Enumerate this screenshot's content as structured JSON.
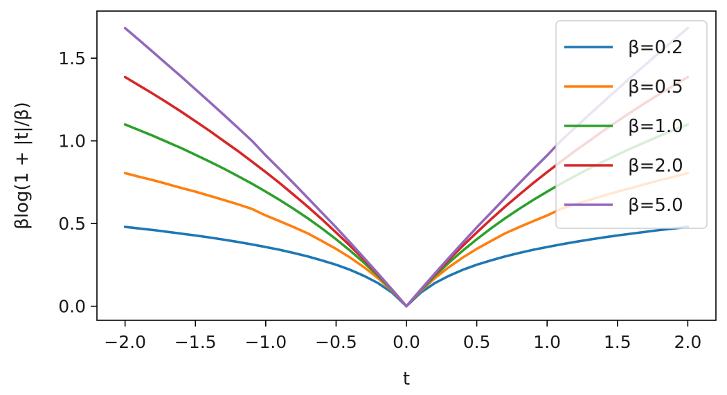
{
  "chart_data": {
    "type": "line",
    "title": "",
    "xlabel": "t",
    "ylabel": "βlog(1 + |t|/β)",
    "xlim": [
      -2.2,
      2.2
    ],
    "ylim": [
      -0.085,
      1.785
    ],
    "xticks": [
      -2.0,
      -1.5,
      -1.0,
      -0.5,
      0.0,
      0.5,
      1.0,
      1.5,
      2.0
    ],
    "xtick_labels": [
      "−2.0",
      "−1.5",
      "−1.0",
      "−0.5",
      "0.0",
      "0.5",
      "1.0",
      "1.5",
      "2.0"
    ],
    "yticks": [
      0.0,
      0.5,
      1.0,
      1.5
    ],
    "ytick_labels": [
      "0.0",
      "0.5",
      "1.0",
      "1.5"
    ],
    "grid": false,
    "legend_position": "top-right",
    "x": [
      -2.0,
      -1.9,
      -1.8,
      -1.7,
      -1.6,
      -1.5,
      -1.4,
      -1.3,
      -1.2,
      -1.1,
      -1.0,
      -0.9,
      -0.8,
      -0.7,
      -0.6,
      -0.5,
      -0.4,
      -0.3,
      -0.2,
      -0.1,
      0.0,
      0.1,
      0.2,
      0.3,
      0.4,
      0.5,
      0.6,
      0.7,
      0.8,
      0.9,
      1.0,
      1.1,
      1.2,
      1.3,
      1.4,
      1.5,
      1.6,
      1.7,
      1.8,
      1.9,
      2.0
    ],
    "series": [
      {
        "name": "β=0.2",
        "color": "#1f77b4",
        "values": [
          0.48,
          0.47,
          0.461,
          0.45,
          0.439,
          0.428,
          0.416,
          0.403,
          0.389,
          0.374,
          0.358,
          0.341,
          0.322,
          0.301,
          0.277,
          0.251,
          0.22,
          0.183,
          0.139,
          0.081,
          0.0,
          0.081,
          0.139,
          0.183,
          0.22,
          0.251,
          0.277,
          0.301,
          0.322,
          0.341,
          0.358,
          0.374,
          0.389,
          0.403,
          0.416,
          0.428,
          0.439,
          0.45,
          0.461,
          0.47,
          0.48
        ]
      },
      {
        "name": "β=0.5",
        "color": "#ff7f0e",
        "values": [
          0.805,
          0.783,
          0.762,
          0.739,
          0.715,
          0.693,
          0.668,
          0.643,
          0.617,
          0.589,
          0.549,
          0.514,
          0.478,
          0.44,
          0.394,
          0.347,
          0.294,
          0.235,
          0.168,
          0.091,
          0.0,
          0.091,
          0.168,
          0.235,
          0.294,
          0.347,
          0.394,
          0.44,
          0.478,
          0.514,
          0.549,
          0.589,
          0.617,
          0.643,
          0.668,
          0.693,
          0.715,
          0.739,
          0.762,
          0.783,
          0.805
        ]
      },
      {
        "name": "β=1.0",
        "color": "#2ca02c",
        "values": [
          1.099,
          1.065,
          1.03,
          0.993,
          0.956,
          0.916,
          0.875,
          0.833,
          0.788,
          0.742,
          0.693,
          0.642,
          0.588,
          0.531,
          0.47,
          0.405,
          0.336,
          0.262,
          0.182,
          0.095,
          0.0,
          0.095,
          0.182,
          0.262,
          0.336,
          0.405,
          0.47,
          0.531,
          0.588,
          0.642,
          0.693,
          0.742,
          0.788,
          0.833,
          0.875,
          0.916,
          0.956,
          0.993,
          1.03,
          1.065,
          1.099
        ]
      },
      {
        "name": "β=2.0",
        "color": "#d62728",
        "values": [
          1.386,
          1.335,
          1.284,
          1.231,
          1.176,
          1.119,
          1.061,
          1.0,
          0.94,
          0.876,
          0.811,
          0.744,
          0.673,
          0.601,
          0.525,
          0.446,
          0.365,
          0.28,
          0.191,
          0.098,
          0.0,
          0.098,
          0.191,
          0.28,
          0.365,
          0.446,
          0.525,
          0.601,
          0.673,
          0.744,
          0.811,
          0.876,
          0.94,
          1.0,
          1.061,
          1.119,
          1.176,
          1.231,
          1.284,
          1.335,
          1.386
        ]
      },
      {
        "name": "β=5.0",
        "color": "#9467bd",
        "values": [
          1.682,
          1.61,
          1.536,
          1.462,
          1.388,
          1.312,
          1.236,
          1.159,
          1.081,
          1.002,
          0.912,
          0.828,
          0.742,
          0.654,
          0.565,
          0.477,
          0.385,
          0.291,
          0.196,
          0.099,
          0.0,
          0.099,
          0.196,
          0.291,
          0.385,
          0.477,
          0.565,
          0.654,
          0.742,
          0.828,
          0.912,
          1.002,
          1.081,
          1.159,
          1.236,
          1.312,
          1.388,
          1.462,
          1.536,
          1.61,
          1.682
        ]
      }
    ]
  }
}
